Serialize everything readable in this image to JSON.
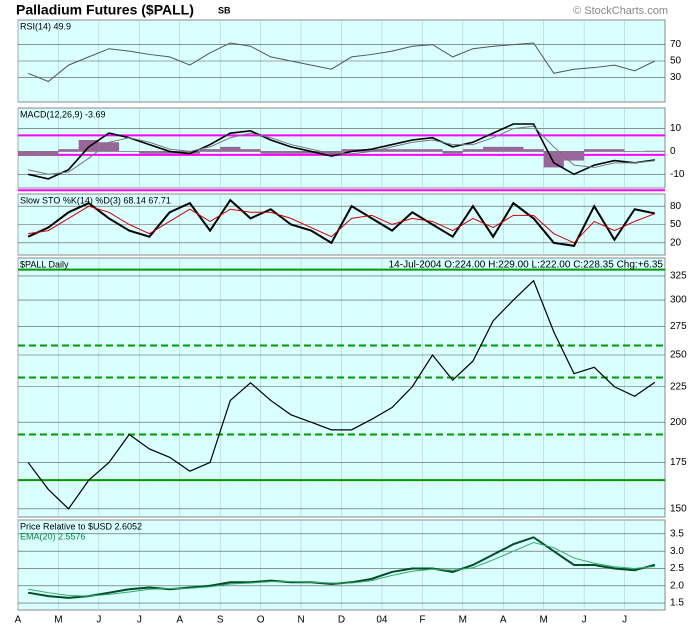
{
  "header": {
    "title": "Palladium Futures ($PALL)",
    "badge": "SB",
    "credit": "© StockCharts.com"
  },
  "chart_data": [
    {
      "type": "line",
      "label": "RSI(14) 49.9",
      "ylim": [
        0,
        100
      ],
      "yticks": [
        30,
        50,
        70
      ],
      "grid": true,
      "series": [
        {
          "name": "RSI",
          "color": "#555555",
          "width": 1,
          "values": [
            35,
            25,
            45,
            55,
            65,
            62,
            58,
            55,
            45,
            60,
            72,
            68,
            55,
            50,
            45,
            40,
            55,
            58,
            62,
            68,
            70,
            55,
            65,
            68,
            70,
            72,
            35,
            40,
            42,
            45,
            38,
            50
          ]
        }
      ]
    },
    {
      "type": "line",
      "label": "MACD(12,26,9) -3.69",
      "ylim": [
        -16,
        19
      ],
      "yticks": [
        -10,
        0,
        10
      ],
      "grid": true,
      "levels": [
        {
          "value": 7,
          "color": "#ff00ff"
        },
        {
          "value": -1.5,
          "color": "#ff00ff"
        },
        {
          "value": -17,
          "color": "#ff00ff"
        }
      ],
      "histogram": {
        "color": "#996699",
        "values": [
          -2,
          -2,
          1,
          5,
          4,
          0,
          -1,
          -1,
          -1,
          1,
          2,
          1,
          -1,
          -1,
          -1,
          -1,
          1,
          1,
          1,
          1,
          1,
          -1,
          1,
          2,
          2,
          1,
          -7,
          -4,
          1,
          1,
          0,
          0.31
        ]
      },
      "series": [
        {
          "name": "MACD",
          "color": "#000000",
          "width": 1.6,
          "values": [
            -10,
            -12,
            -8,
            2,
            8,
            6,
            3,
            0,
            -1,
            3,
            8,
            9,
            5,
            2,
            0,
            -2,
            0,
            1,
            3,
            5,
            6,
            2,
            4,
            8,
            12,
            12,
            -5,
            -10,
            -6,
            -4,
            -5,
            -3.69
          ]
        },
        {
          "name": "Signal",
          "color": "#777777",
          "width": 1,
          "values": [
            -8,
            -10,
            -9,
            -3,
            4,
            6,
            4,
            1,
            0,
            2,
            6,
            8,
            6,
            3,
            1,
            -1,
            -1,
            0,
            2,
            4,
            5,
            3,
            3,
            6,
            10,
            11,
            2,
            -6,
            -7,
            -5,
            -5,
            -4
          ]
        }
      ]
    },
    {
      "type": "line",
      "label": "Slow STO %K(14) %D(3) 68.14 67.71",
      "ylim": [
        0,
        100
      ],
      "yticks": [
        20,
        50,
        80
      ],
      "grid": true,
      "series": [
        {
          "name": "%K",
          "color": "#000000",
          "width": 2,
          "values": [
            30,
            45,
            70,
            85,
            60,
            40,
            30,
            70,
            85,
            40,
            90,
            60,
            75,
            50,
            40,
            20,
            80,
            60,
            40,
            70,
            50,
            30,
            80,
            30,
            85,
            60,
            20,
            15,
            80,
            25,
            75,
            68.14
          ]
        },
        {
          "name": "%D",
          "color": "#cc0000",
          "width": 1,
          "values": [
            35,
            40,
            60,
            80,
            70,
            50,
            35,
            55,
            75,
            55,
            75,
            70,
            70,
            60,
            45,
            30,
            60,
            65,
            50,
            60,
            55,
            40,
            60,
            45,
            65,
            65,
            35,
            20,
            55,
            40,
            55,
            67.71
          ]
        }
      ]
    },
    {
      "type": "line",
      "label": "$PALL Daily",
      "quote": "14-Jul-2004 O:224.00 H:229.00 L:222.00 C:228.35 Chg:+6.35",
      "log": true,
      "ylim": [
        146,
        345
      ],
      "yticks": [
        150,
        175,
        200,
        225,
        250,
        275,
        300,
        325
      ],
      "grid": true,
      "levels": [
        {
          "value": 332,
          "color": "#009900"
        },
        {
          "value": 258,
          "color": "#009900",
          "dash": true
        },
        {
          "value": 232,
          "color": "#009900",
          "dash": true
        },
        {
          "value": 192,
          "color": "#009900",
          "dash": true
        },
        {
          "value": 165,
          "color": "#009900"
        }
      ],
      "series": [
        {
          "name": "PALL",
          "color": "#000000",
          "width": 1.2,
          "values": [
            175,
            160,
            150,
            165,
            175,
            192,
            183,
            178,
            170,
            175,
            215,
            228,
            215,
            205,
            200,
            195,
            195,
            202,
            210,
            225,
            250,
            230,
            245,
            280,
            300,
            320,
            270,
            235,
            240,
            225,
            218,
            228.35
          ]
        }
      ]
    },
    {
      "type": "line",
      "label": "Price Relative to $USD 2.6052",
      "ema_label": "EMA(20) 2.5576",
      "ylim": [
        1.3,
        3.9
      ],
      "yticks": [
        1.5,
        {
          "value": 2,
          "label": "2.0"
        },
        2.5,
        {
          "value": 3,
          "label": "3.0"
        },
        3.5
      ],
      "grid": true,
      "categories": [
        "A",
        null,
        "M",
        null,
        "J",
        null,
        "J",
        null,
        "A",
        null,
        "S",
        null,
        "O",
        null,
        "N",
        null,
        "D",
        null,
        "04",
        null,
        "F",
        null,
        "M",
        null,
        "A",
        null,
        "M",
        null,
        "J",
        null,
        "J",
        null
      ],
      "series": [
        {
          "name": "Relative",
          "color": "#004d26",
          "width": 2,
          "values": [
            1.8,
            1.7,
            1.65,
            1.7,
            1.8,
            1.9,
            1.95,
            1.9,
            1.95,
            2.0,
            2.1,
            2.1,
            2.15,
            2.1,
            2.1,
            2.05,
            2.1,
            2.2,
            2.4,
            2.5,
            2.5,
            2.4,
            2.6,
            2.9,
            3.2,
            3.4,
            3.0,
            2.6,
            2.6,
            2.5,
            2.45,
            2.6052
          ]
        },
        {
          "name": "EMA(20)",
          "color": "#33aa66",
          "width": 1,
          "values": [
            1.9,
            1.8,
            1.72,
            1.7,
            1.75,
            1.82,
            1.9,
            1.92,
            1.93,
            1.97,
            2.05,
            2.08,
            2.12,
            2.12,
            2.1,
            2.08,
            2.08,
            2.15,
            2.3,
            2.42,
            2.48,
            2.45,
            2.52,
            2.75,
            3.0,
            3.25,
            3.1,
            2.8,
            2.65,
            2.55,
            2.5,
            2.5576
          ]
        }
      ]
    }
  ]
}
